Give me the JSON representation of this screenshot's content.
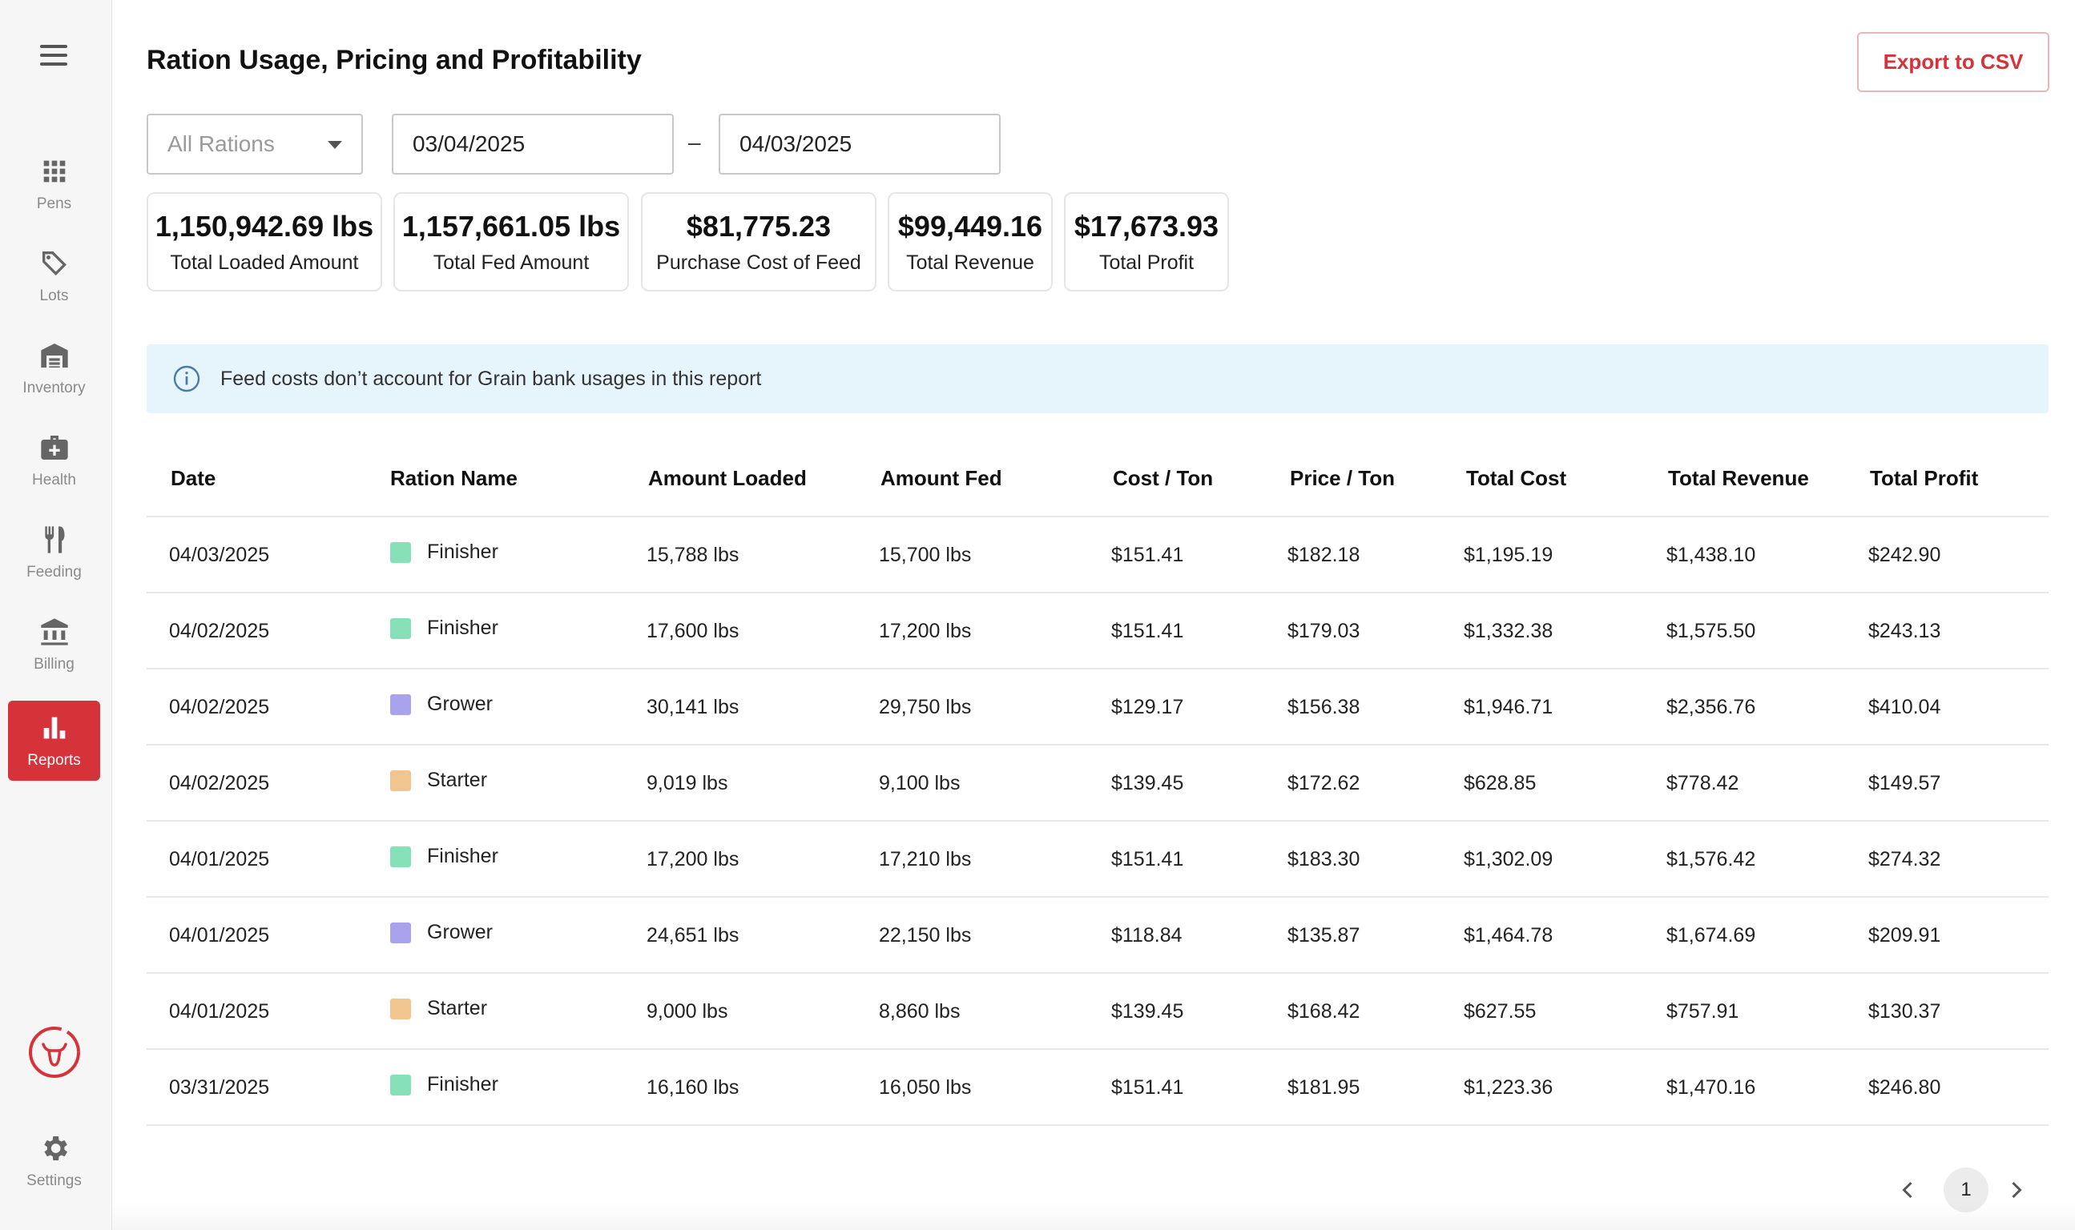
{
  "sidebar": {
    "items": [
      {
        "label": "Pens",
        "icon": "grid-icon"
      },
      {
        "label": "Lots",
        "icon": "tag-icon"
      },
      {
        "label": "Inventory",
        "icon": "warehouse-icon"
      },
      {
        "label": "Health",
        "icon": "medical-kit-icon"
      },
      {
        "label": "Feeding",
        "icon": "fork-knife-icon"
      },
      {
        "label": "Billing",
        "icon": "bank-icon"
      },
      {
        "label": "Reports",
        "icon": "bar-chart-icon",
        "active": true
      }
    ],
    "settings_label": "Settings",
    "accent_color": "#d6323a"
  },
  "header": {
    "title": "Ration Usage, Pricing and Profitability",
    "export_label": "Export to CSV"
  },
  "filters": {
    "ration_select": "All Rations",
    "start_date": "03/04/2025",
    "date_separator": "–",
    "end_date": "04/03/2025"
  },
  "stats": [
    {
      "value": "1,150,942.69 lbs",
      "label": "Total Loaded Amount"
    },
    {
      "value": "1,157,661.05 lbs",
      "label": "Total Fed Amount"
    },
    {
      "value": "$81,775.23",
      "label": "Purchase Cost of Feed"
    },
    {
      "value": "$99,449.16",
      "label": "Total Revenue"
    },
    {
      "value": "$17,673.93",
      "label": "Total Profit"
    }
  ],
  "info_banner": "Feed costs don’t account for Grain bank usages in this report",
  "table": {
    "headers": [
      "Date",
      "Ration Name",
      "Amount Loaded",
      "Amount Fed",
      "Cost / Ton",
      "Price / Ton",
      "Total Cost",
      "Total Revenue",
      "Total Profit"
    ],
    "ration_colors": {
      "Finisher": "#86e0b8",
      "Grower": "#a9a2ec",
      "Starter": "#f2c58f"
    },
    "rows": [
      [
        "04/03/2025",
        "Finisher",
        "15,788 lbs",
        "15,700 lbs",
        "$151.41",
        "$182.18",
        "$1,195.19",
        "$1,438.10",
        "$242.90"
      ],
      [
        "04/02/2025",
        "Finisher",
        "17,600 lbs",
        "17,200 lbs",
        "$151.41",
        "$179.03",
        "$1,332.38",
        "$1,575.50",
        "$243.13"
      ],
      [
        "04/02/2025",
        "Grower",
        "30,141 lbs",
        "29,750 lbs",
        "$129.17",
        "$156.38",
        "$1,946.71",
        "$2,356.76",
        "$410.04"
      ],
      [
        "04/02/2025",
        "Starter",
        "9,019 lbs",
        "9,100 lbs",
        "$139.45",
        "$172.62",
        "$628.85",
        "$778.42",
        "$149.57"
      ],
      [
        "04/01/2025",
        "Finisher",
        "17,200 lbs",
        "17,210 lbs",
        "$151.41",
        "$183.30",
        "$1,302.09",
        "$1,576.42",
        "$274.32"
      ],
      [
        "04/01/2025",
        "Grower",
        "24,651 lbs",
        "22,150 lbs",
        "$118.84",
        "$135.87",
        "$1,464.78",
        "$1,674.69",
        "$209.91"
      ],
      [
        "04/01/2025",
        "Starter",
        "9,000 lbs",
        "8,860 lbs",
        "$139.45",
        "$168.42",
        "$627.55",
        "$757.91",
        "$130.37"
      ],
      [
        "03/31/2025",
        "Finisher",
        "16,160 lbs",
        "16,050 lbs",
        "$151.41",
        "$181.95",
        "$1,223.36",
        "$1,470.16",
        "$246.80"
      ]
    ]
  },
  "pagination": {
    "current_page": "1"
  }
}
